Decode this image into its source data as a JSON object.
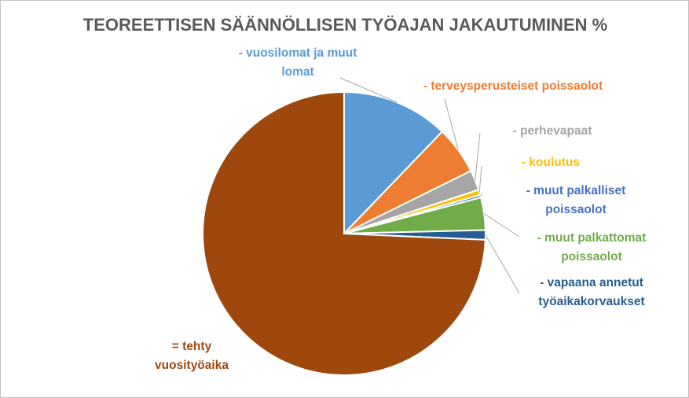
{
  "chart_data": {
    "type": "pie",
    "title": "TEOREETTISEN SÄÄNNÖLLISEN TYÖAJAN JAKAUTUMINEN  %",
    "categories": [
      "- vuosilomat ja muut lomat",
      "- terveysperusteiset poissaolot",
      "- perhevapaat",
      "- koulutus",
      "- muut palkalliset poissaolot",
      "- muut palkattomat poissaolot",
      "- vapaana annetut työaikakorvaukset",
      "= tehty vuosityöaika"
    ],
    "values": [
      12.2,
      5.5,
      2.3,
      0.6,
      0.3,
      3.7,
      1.1,
      74.3
    ],
    "colors": [
      "#5b9bd5",
      "#ed7d31",
      "#a5a5a5",
      "#ffc000",
      "#4472c4",
      "#70ad47",
      "#255e91",
      "#9e480e"
    ]
  }
}
